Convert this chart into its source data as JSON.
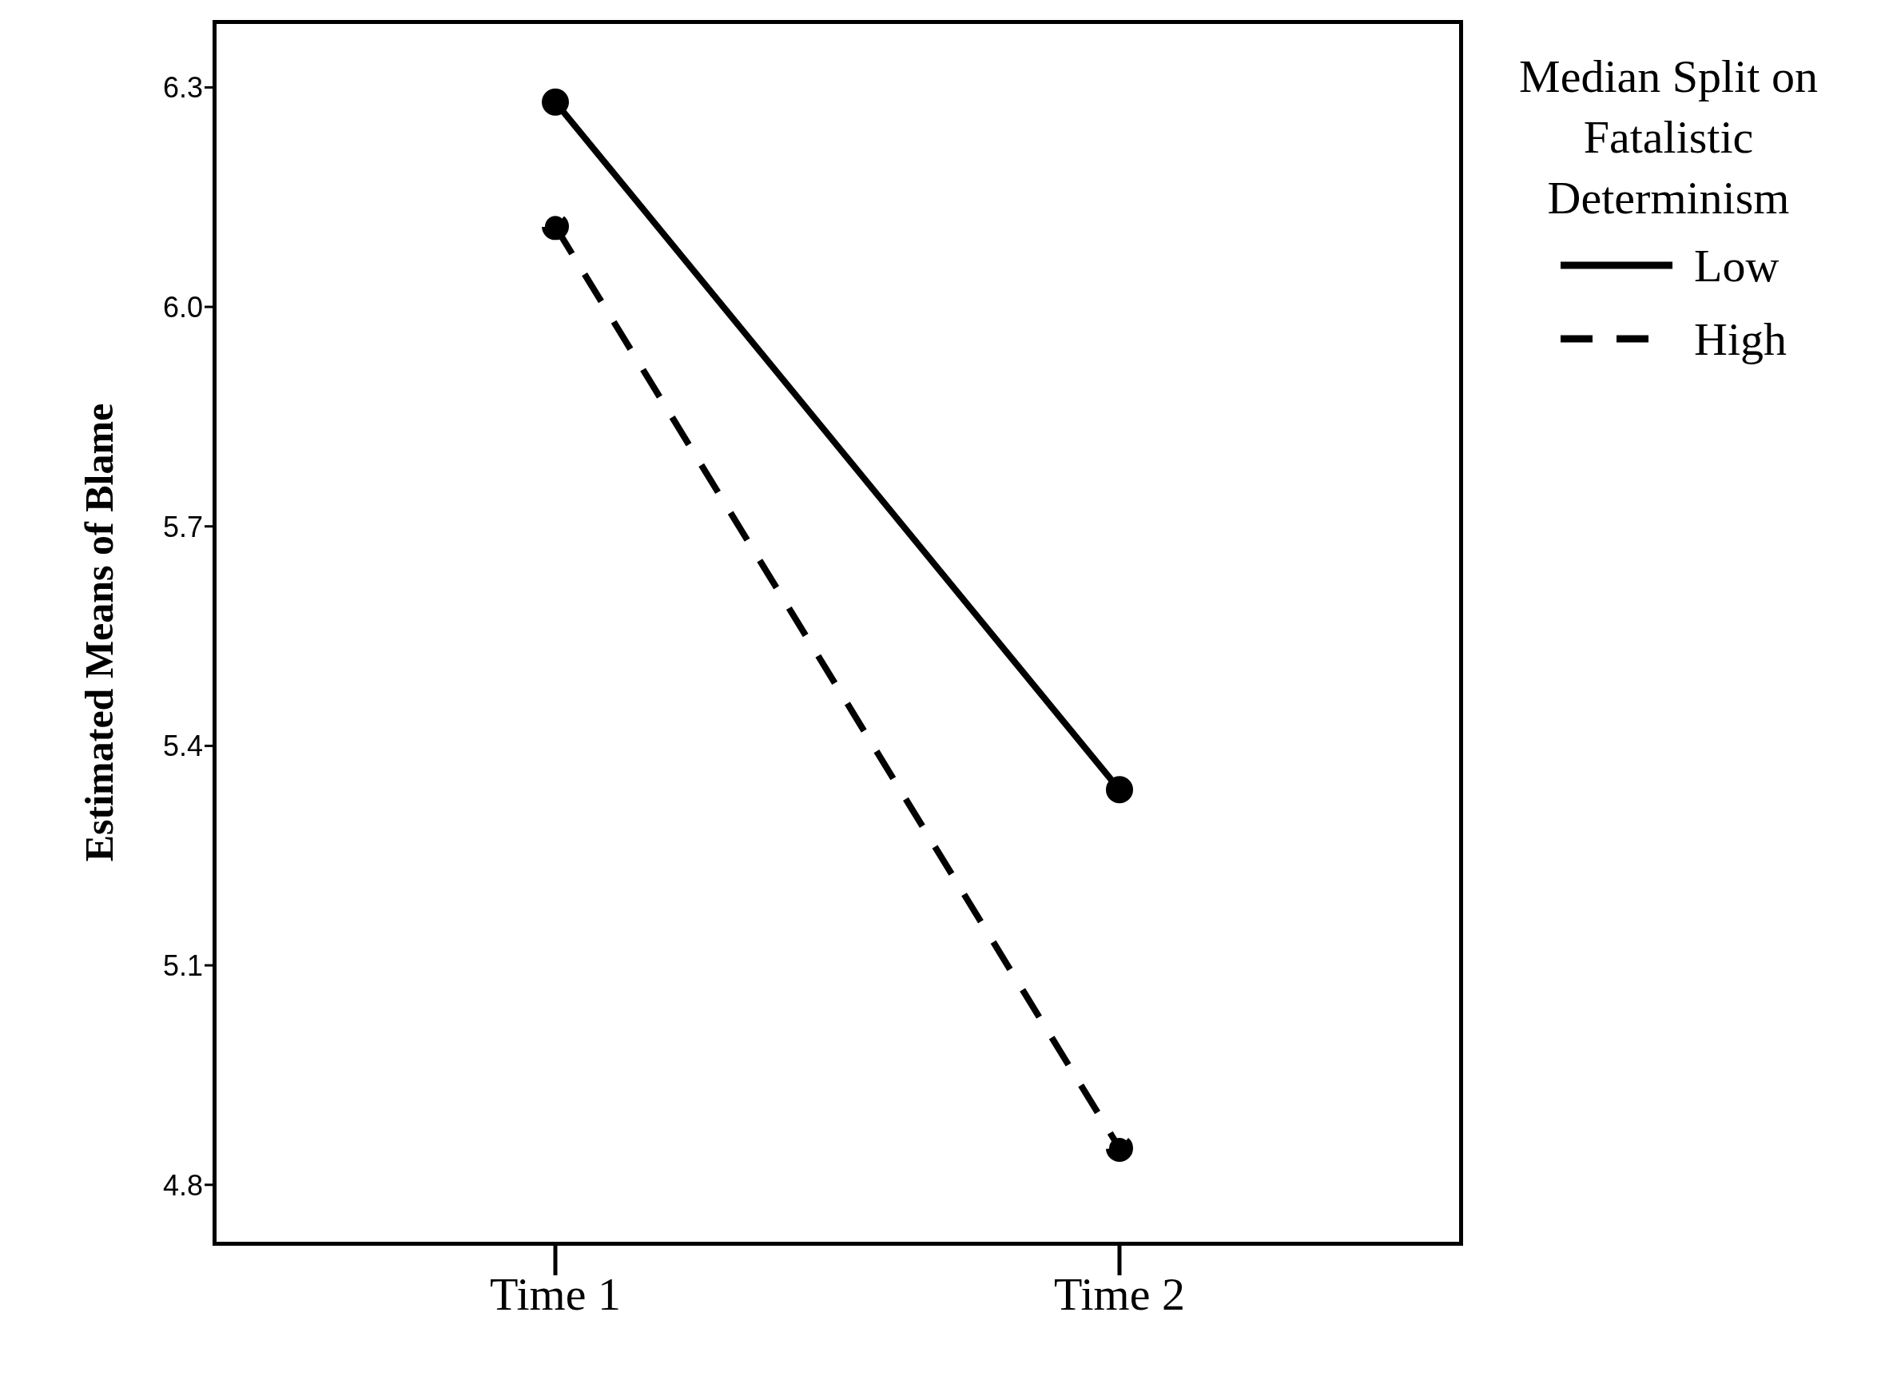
{
  "chart_data": {
    "type": "line",
    "ylabel": "Estimated Means of Blame",
    "legend_title": "Median Split on Fatalistic Determinism",
    "legend": "top right",
    "marker": "circle",
    "categories": [
      "Time 1",
      "Time 2"
    ],
    "series": [
      {
        "name": "Low",
        "color": "#000000",
        "line_style": "solid",
        "values": [
          6.28,
          5.34
        ]
      },
      {
        "name": "High",
        "color": "#000000",
        "line_style": "dashed",
        "values": [
          6.11,
          4.85
        ]
      }
    ],
    "ylim": [
      4.72,
      6.39
    ],
    "yticks": [
      4.8,
      5.1,
      5.4,
      5.7,
      {
        "value": 6,
        "label": "6.0"
      },
      6.3
    ]
  }
}
